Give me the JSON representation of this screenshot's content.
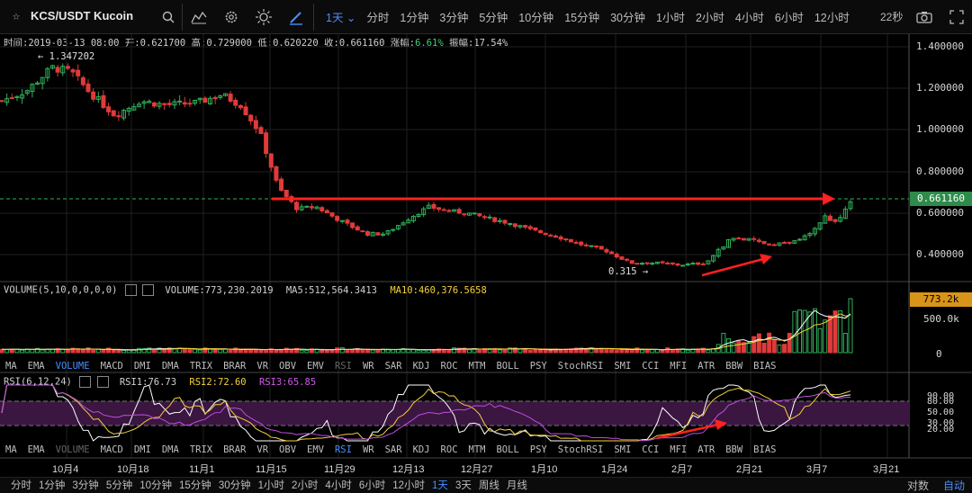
{
  "toolbar": {
    "pair_title": "KCS/USDT Kucoin",
    "periods": [
      "1天",
      "分时",
      "1分钟",
      "3分钟",
      "5分钟",
      "10分钟",
      "15分钟",
      "30分钟",
      "1小时",
      "2小时",
      "4小时",
      "6小时",
      "12小时"
    ],
    "active_period": "1天",
    "countdown": "22秒",
    "icons": [
      "star-icon",
      "search-icon",
      "indicator-icon",
      "settings-icon",
      "theme-icon",
      "draw-icon",
      "camera-icon",
      "fullscreen-icon"
    ]
  },
  "info": {
    "time": "时间:2019-03-13 08:00",
    "open": "开:0.621700",
    "high": "高:0.729000",
    "low": "低:0.620220",
    "close": "收:0.661160",
    "change_label": "涨幅:",
    "change_value": "6.61%",
    "amplitude": "振幅:17.54%"
  },
  "price_axis": [
    "1.400000",
    "1.200000",
    "1.000000",
    "0.800000",
    "0.600000",
    "0.400000"
  ],
  "current_price": "0.661160",
  "annotations": {
    "high_mark": "← 1.347202",
    "low_mark": "0.315 →"
  },
  "volume_panel": {
    "header": "VOLUME(5,10,0,0,0,0)",
    "volume": "VOLUME:773,230.2019",
    "ma5": "MA5:512,564.3413",
    "ma10": "MA10:460,376.5658",
    "axis": [
      "500.0k",
      "0"
    ],
    "current": "773.2k"
  },
  "indicator_tabs": [
    "MA",
    "EMA",
    "VOLUME",
    "MACD",
    "DMI",
    "DMA",
    "TRIX",
    "BRAR",
    "VR",
    "OBV",
    "EMV",
    "RSI",
    "WR",
    "SAR",
    "KDJ",
    "ROC",
    "MTM",
    "BOLL",
    "PSY",
    "StochRSI",
    "SMI",
    "CCI",
    "MFI",
    "ATR",
    "BBW",
    "BIAS"
  ],
  "indicator_bar1_active": "VOLUME",
  "indicator_bar2_active": "RSI",
  "rsi_panel": {
    "header": "RSI(6,12,24)",
    "rsi1": "RSI1:76.73",
    "rsi2": "RSI2:72.60",
    "rsi3": "RSI3:65.85",
    "axis": [
      "90.00",
      "80.00",
      "50.00",
      "30.00",
      "20.00"
    ]
  },
  "x_axis": [
    "10月4",
    "10月18",
    "11月1",
    "11月15",
    "11月29",
    "12月13",
    "12月27",
    "1月10",
    "1月24",
    "2月7",
    "2月21",
    "3月7",
    "3月21"
  ],
  "bottom_periods": [
    "分时",
    "1分钟",
    "3分钟",
    "5分钟",
    "10分钟",
    "15分钟",
    "30分钟",
    "1小时",
    "2小时",
    "4小时",
    "6小时",
    "12小时",
    "1天",
    "3天",
    "周线",
    "月线"
  ],
  "bottom_active": "1天",
  "scale_buttons": [
    "对数",
    "自动"
  ],
  "scale_active": "自动",
  "colors": {
    "up": "#2fae5a",
    "down": "#e03a3a",
    "accent": "#4a8eff",
    "rsi_band": "#3a1640"
  }
}
